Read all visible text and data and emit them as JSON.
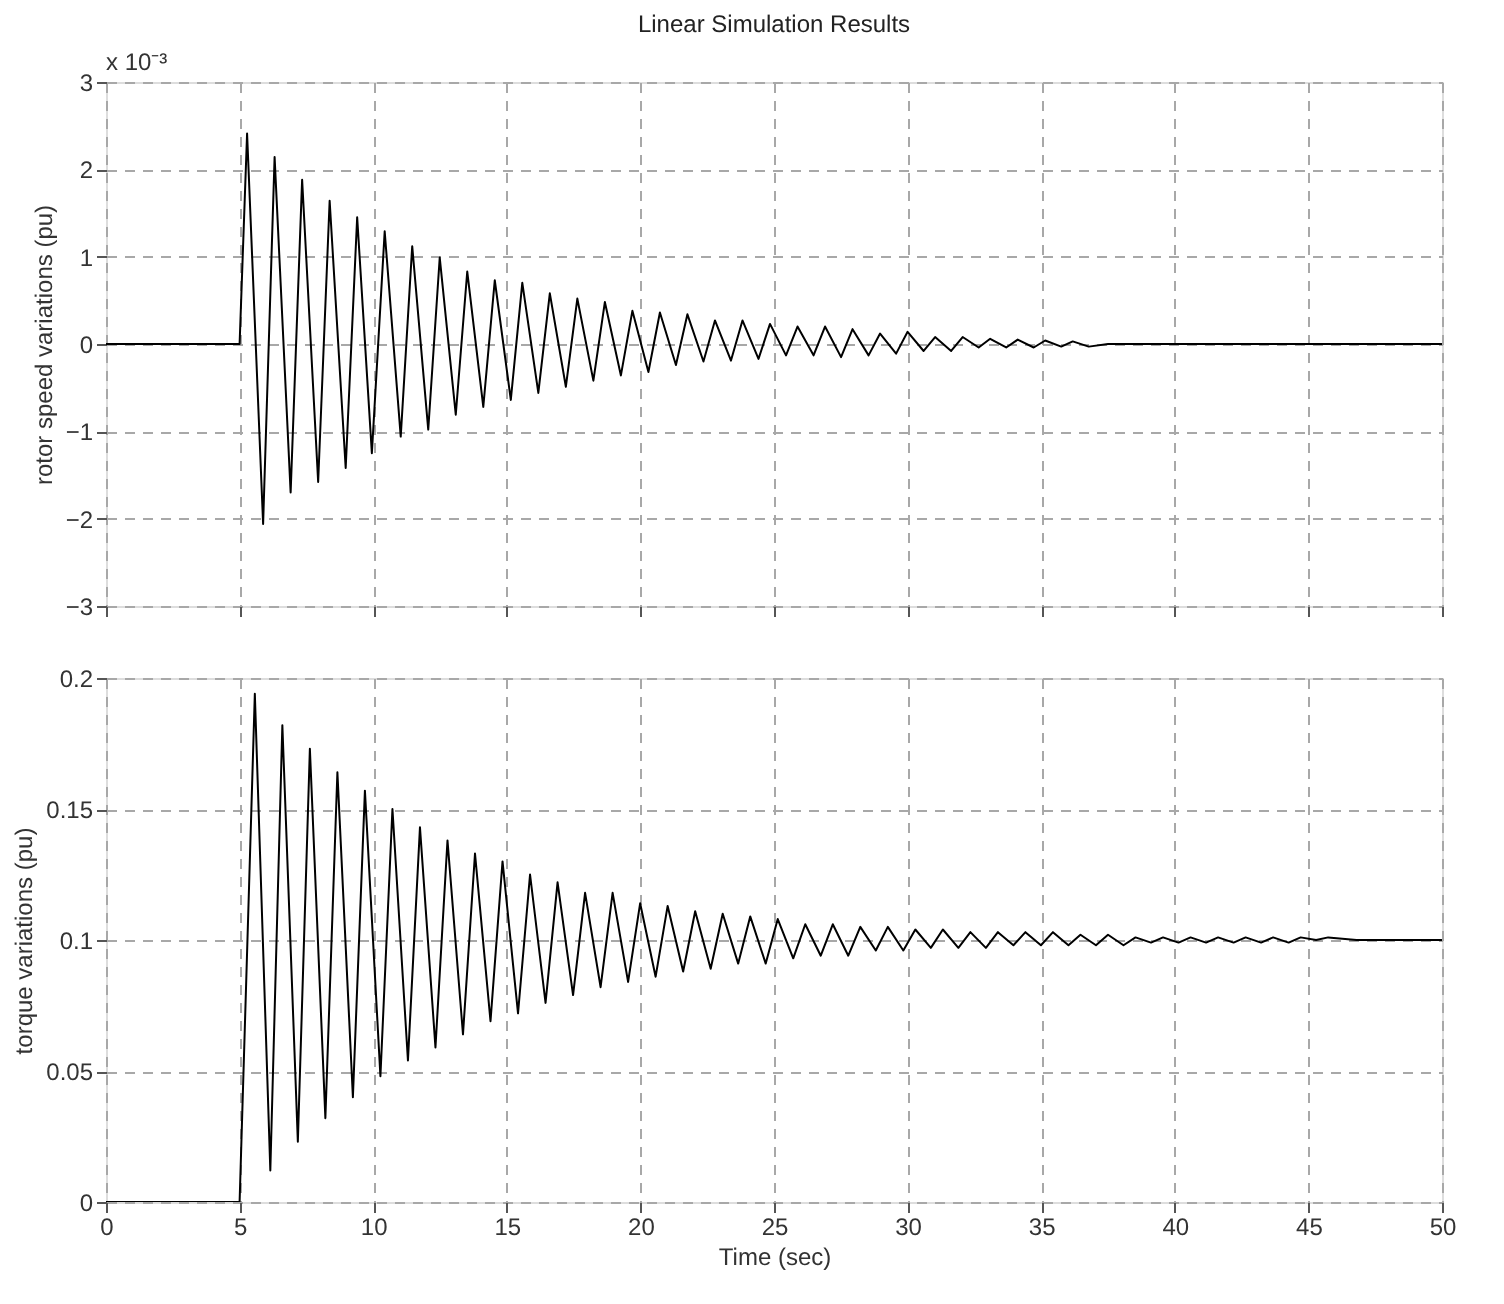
{
  "chart_data": [
    {
      "type": "line",
      "title": "Linear Simulation Results",
      "ylabel": "rotor speed variations (pu)",
      "annotations": [
        "x 10⁻³"
      ],
      "xlim": [
        0,
        50
      ],
      "xticks": [
        0,
        5,
        10,
        15,
        20,
        25,
        30,
        35,
        40,
        45,
        50
      ],
      "ylim": [
        -3,
        3
      ],
      "yticks": [
        -3,
        -2,
        -1,
        0,
        1,
        2,
        3
      ],
      "tick_labels": "y",
      "grid": true,
      "series": [
        {
          "color": "#000000",
          "x": [
            0,
            5,
            5.28,
            5.88,
            6.31,
            6.91,
            7.34,
            7.94,
            8.37,
            8.97,
            9.4,
            9.95,
            10.43,
            11.03,
            11.46,
            12.06,
            12.49,
            13.09,
            13.52,
            14.12,
            14.55,
            15.15,
            15.58,
            16.18,
            16.61,
            17.21,
            17.64,
            18.24,
            18.67,
            19.27,
            19.7,
            20.3,
            20.73,
            21.33,
            21.76,
            22.36,
            22.79,
            23.39,
            23.82,
            24.42,
            24.85,
            25.45,
            25.88,
            26.48,
            26.91,
            27.51,
            27.94,
            28.54,
            28.97,
            29.57,
            30.0,
            30.6,
            31.03,
            31.63,
            32.06,
            32.66,
            33.09,
            33.69,
            34.12,
            34.72,
            35.15,
            35.75,
            36.18,
            36.78,
            37.5,
            50
          ],
          "values": [
            0,
            0,
            2.41,
            -2.06,
            2.14,
            -1.7,
            1.88,
            -1.58,
            1.64,
            -1.42,
            1.45,
            -1.25,
            1.29,
            -1.06,
            1.12,
            -0.98,
            0.99,
            -0.81,
            0.83,
            -0.72,
            0.73,
            -0.64,
            0.7,
            -0.56,
            0.58,
            -0.49,
            0.52,
            -0.42,
            0.48,
            -0.36,
            0.38,
            -0.32,
            0.36,
            -0.24,
            0.34,
            -0.2,
            0.27,
            -0.19,
            0.27,
            -0.17,
            0.23,
            -0.13,
            0.2,
            -0.13,
            0.2,
            -0.15,
            0.17,
            -0.13,
            0.12,
            -0.11,
            0.14,
            -0.08,
            0.08,
            -0.08,
            0.08,
            -0.04,
            0.06,
            -0.04,
            0.05,
            -0.04,
            0.04,
            -0.03,
            0.03,
            -0.03,
            0,
            0
          ]
        }
      ]
    },
    {
      "type": "line",
      "xlabel": "Time (sec)",
      "ylabel": "torque variations (pu)",
      "xlim": [
        0,
        50
      ],
      "xticks": [
        0,
        5,
        10,
        15,
        20,
        25,
        30,
        35,
        40,
        45,
        50
      ],
      "ylim": [
        0,
        0.2
      ],
      "yticks": [
        0,
        0.05,
        0.1,
        0.15,
        0.2
      ],
      "grid": true,
      "series": [
        {
          "color": "#000000",
          "x": [
            0,
            5,
            5.57,
            6.15,
            6.6,
            7.18,
            7.63,
            8.21,
            8.66,
            9.24,
            9.69,
            10.27,
            10.72,
            11.3,
            11.75,
            12.33,
            12.78,
            13.36,
            13.81,
            14.39,
            14.84,
            15.42,
            15.87,
            16.45,
            16.9,
            17.48,
            17.93,
            18.51,
            18.96,
            19.54,
            19.99,
            20.57,
            21.02,
            21.6,
            22.05,
            22.63,
            23.08,
            23.66,
            24.11,
            24.69,
            25.14,
            25.72,
            26.17,
            26.75,
            27.2,
            27.78,
            28.23,
            28.81,
            29.26,
            29.84,
            30.29,
            30.87,
            31.32,
            31.9,
            32.35,
            32.93,
            33.38,
            33.96,
            34.41,
            34.99,
            35.44,
            36.02,
            36.47,
            37.05,
            37.5,
            38.08,
            38.53,
            39.11,
            39.56,
            40.14,
            40.59,
            41.17,
            41.62,
            42.2,
            42.65,
            43.23,
            43.68,
            44.26,
            44.71,
            45.29,
            45.74,
            46.8,
            50
          ],
          "values": [
            0,
            0,
            0.194,
            0.012,
            0.182,
            0.023,
            0.173,
            0.032,
            0.164,
            0.04,
            0.157,
            0.048,
            0.15,
            0.054,
            0.143,
            0.059,
            0.138,
            0.064,
            0.133,
            0.069,
            0.13,
            0.072,
            0.125,
            0.076,
            0.122,
            0.079,
            0.118,
            0.082,
            0.118,
            0.084,
            0.114,
            0.086,
            0.113,
            0.088,
            0.111,
            0.089,
            0.11,
            0.091,
            0.109,
            0.091,
            0.108,
            0.093,
            0.106,
            0.094,
            0.106,
            0.094,
            0.105,
            0.096,
            0.105,
            0.096,
            0.104,
            0.097,
            0.104,
            0.097,
            0.103,
            0.097,
            0.103,
            0.098,
            0.103,
            0.098,
            0.103,
            0.098,
            0.102,
            0.098,
            0.102,
            0.098,
            0.101,
            0.099,
            0.101,
            0.099,
            0.101,
            0.099,
            0.101,
            0.099,
            0.101,
            0.099,
            0.101,
            0.099,
            0.101,
            0.1,
            0.101,
            0.1,
            0.1
          ]
        }
      ]
    }
  ]
}
